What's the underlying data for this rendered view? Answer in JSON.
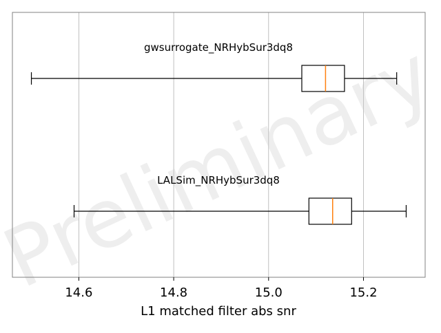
{
  "chart_data": {
    "type": "boxplot",
    "orientation": "horizontal",
    "xlabel": "L1 matched filter abs snr",
    "ylabel": "",
    "xlim": [
      14.46,
      15.33
    ],
    "xticks": [
      14.6,
      14.8,
      15.0,
      15.2
    ],
    "xtick_labels": [
      "14.6",
      "14.8",
      "15.0",
      "15.2"
    ],
    "grid": "vertical",
    "watermark": "Preliminary",
    "series": [
      {
        "name": "gwsurrogate_NRHybSur3dq8",
        "whisker_low": 14.5,
        "q1": 15.07,
        "median": 15.12,
        "q3": 15.16,
        "whisker_high": 15.27
      },
      {
        "name": "LALSim_NRHybSur3dq8",
        "whisker_low": 14.59,
        "q1": 15.085,
        "median": 15.135,
        "q3": 15.175,
        "whisker_high": 15.29
      }
    ],
    "colors": {
      "box": "#000000",
      "median": "#ff7f0e",
      "grid": "#b0b0b0",
      "frame": "#808080",
      "watermark": "#c8c8c8"
    }
  }
}
